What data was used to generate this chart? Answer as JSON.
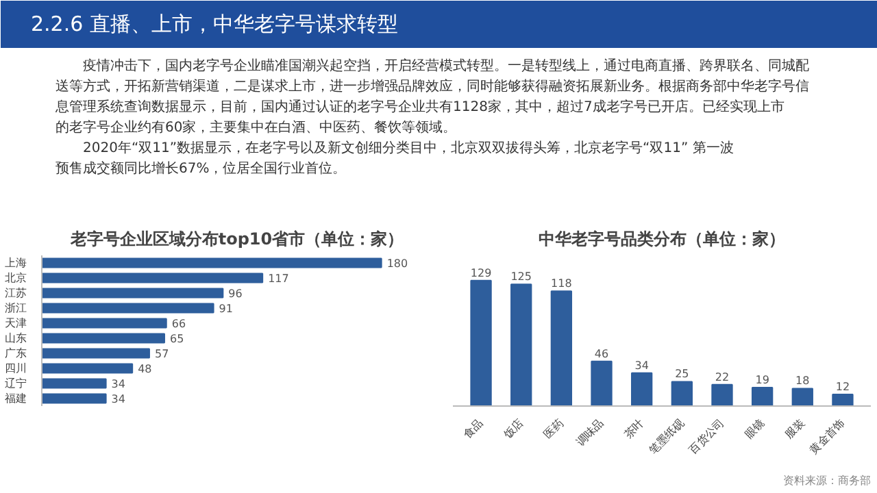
{
  "chart_data": [
    {
      "type": "bar",
      "orientation": "horizontal",
      "title": "老字号企业区域分布top10省市（单位：家）",
      "categories": [
        "上海",
        "北京",
        "江苏",
        "浙江",
        "天津",
        "山东",
        "广东",
        "四川",
        "辽宁",
        "福建"
      ],
      "values": [
        180,
        117,
        96,
        91,
        66,
        65,
        57,
        48,
        34,
        34
      ],
      "color": "#2e5e9c",
      "data_labels": true,
      "annotations": [
        "2.2.6 直播、上市，中华老字号谋求转型",
        "疫情冲击下，国内老字号企业瞄准国潮兴起空挡，开启经营模式转型。一是转型线上，通过电商直播、跨界联名、同城配送等方式，开拓新营销渠道，二是谋求上市，进一步增强品牌效应，同时能够获得融资拓展新业务。根据商务部中华老字号信息管理系统查询数据显示，目前，国内通过认证的老字号企业共有1128家，其中，超过7成老字号已开店。已经实现上市的老字号企业约有60家，主要集中在白酒、中医药、餐饮等领域。",
        "2020年“双11”数据显示，在老字号以及新文创细分类目中，北京双双拔得头筹，北京老字号“双11” 第一波预售成交额同比增长67%，位居全国行业首位。"
      ]
    },
    {
      "type": "bar",
      "title": "中华老字号品类分布（单位：家）",
      "categories": [
        "食品",
        "饭店",
        "医药",
        "调味品",
        "茶叶",
        "笔墨纸砚",
        "百货公司",
        "眼镜",
        "服装",
        "黄金首饰"
      ],
      "values": [
        129,
        125,
        118,
        46,
        34,
        25,
        22,
        19,
        18,
        12
      ],
      "color": "#2e5e9c",
      "data_labels": true,
      "annotations": [
        "资料来源：商务部"
      ]
    }
  ]
}
